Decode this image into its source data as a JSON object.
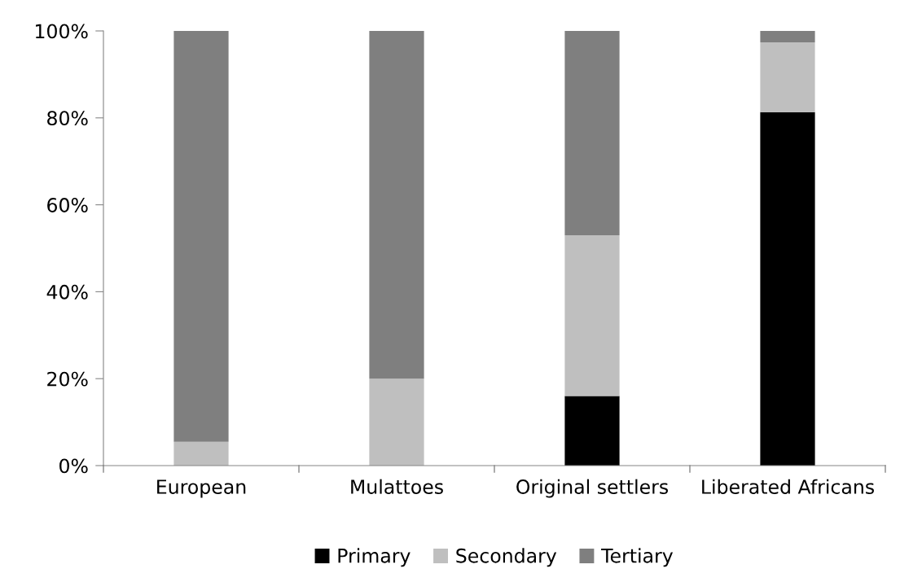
{
  "chart_data": {
    "type": "bar",
    "stacked": true,
    "categories": [
      "European",
      "Mulattoes",
      "Original settlers",
      "Liberated Africans"
    ],
    "series": [
      {
        "name": "Primary",
        "color": "#000000",
        "values": [
          0,
          0,
          16,
          81.3
        ]
      },
      {
        "name": "Secondary",
        "color": "#bfbfbf",
        "values": [
          5.5,
          20,
          37,
          16.1
        ]
      },
      {
        "name": "Tertiary",
        "color": "#7f7f7f",
        "values": [
          94.5,
          80,
          47,
          2.6
        ]
      }
    ],
    "ylim": [
      0,
      100
    ],
    "yticks": [
      {
        "value": 0,
        "label": "0%"
      },
      {
        "value": 20,
        "label": "20%"
      },
      {
        "value": 40,
        "label": "40%"
      },
      {
        "value": 60,
        "label": "60%"
      },
      {
        "value": 80,
        "label": "80%"
      },
      {
        "value": 100,
        "label": "100%"
      }
    ],
    "grid": false,
    "legend": "bottom"
  }
}
